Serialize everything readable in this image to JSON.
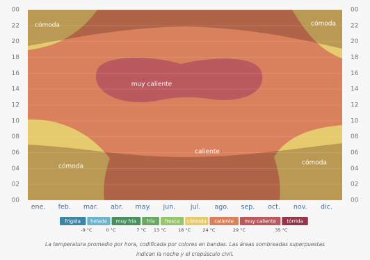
{
  "chart_data": {
    "type": "band-heatmap",
    "categories": [
      "ene.",
      "feb.",
      "mar.",
      "abr.",
      "may.",
      "jun.",
      "jul.",
      "ago.",
      "sep.",
      "oct.",
      "nov.",
      "dic."
    ],
    "ylim": [
      0,
      24
    ],
    "yticks": [
      {
        "value": 0,
        "label": "00"
      },
      {
        "value": 2,
        "label": "02"
      },
      {
        "value": 4,
        "label": "04"
      },
      {
        "value": 6,
        "label": "06"
      },
      {
        "value": 8,
        "label": "08"
      },
      10,
      12,
      14,
      16,
      18,
      20,
      22,
      {
        "value": 24,
        "label": "00"
      }
    ],
    "bands": [
      {
        "name": "frígida",
        "color": "#3f86a6"
      },
      {
        "name": "helada",
        "color": "#6bb4cc"
      },
      {
        "name": "muy fría",
        "color": "#4a8f5e"
      },
      {
        "name": "fría",
        "color": "#6aa864"
      },
      {
        "name": "fresca",
        "color": "#98c46c"
      },
      {
        "name": "cómoda",
        "color": "#e6cb6e"
      },
      {
        "name": "caliente",
        "color": "#d9805d"
      },
      {
        "name": "muy caliente",
        "color": "#bb5a5e"
      },
      {
        "name": "tórrida",
        "color": "#93384a"
      }
    ],
    "thresholds": [
      {
        "value": -9,
        "label": "-9 °C"
      },
      {
        "value": 0,
        "label": "0 °C"
      },
      {
        "value": 7,
        "label": "7 °C"
      },
      {
        "value": 13,
        "label": "13 °C"
      },
      {
        "value": 18,
        "label": "18 °C"
      },
      {
        "value": 24,
        "label": "24 °C"
      },
      {
        "value": 29,
        "label": "29 °C"
      },
      {
        "value": 35,
        "label": "35 °C"
      }
    ],
    "annotations": [
      "cómoda",
      "cómoda",
      "muy caliente",
      "caliente",
      "cómoda",
      "cómoda"
    ],
    "caption": [
      "La temperatura promedio por hora, codificada por colores en bandas. Las áreas sombreadas superpuestas",
      "indican la noche y el crepúsculo civil."
    ]
  }
}
